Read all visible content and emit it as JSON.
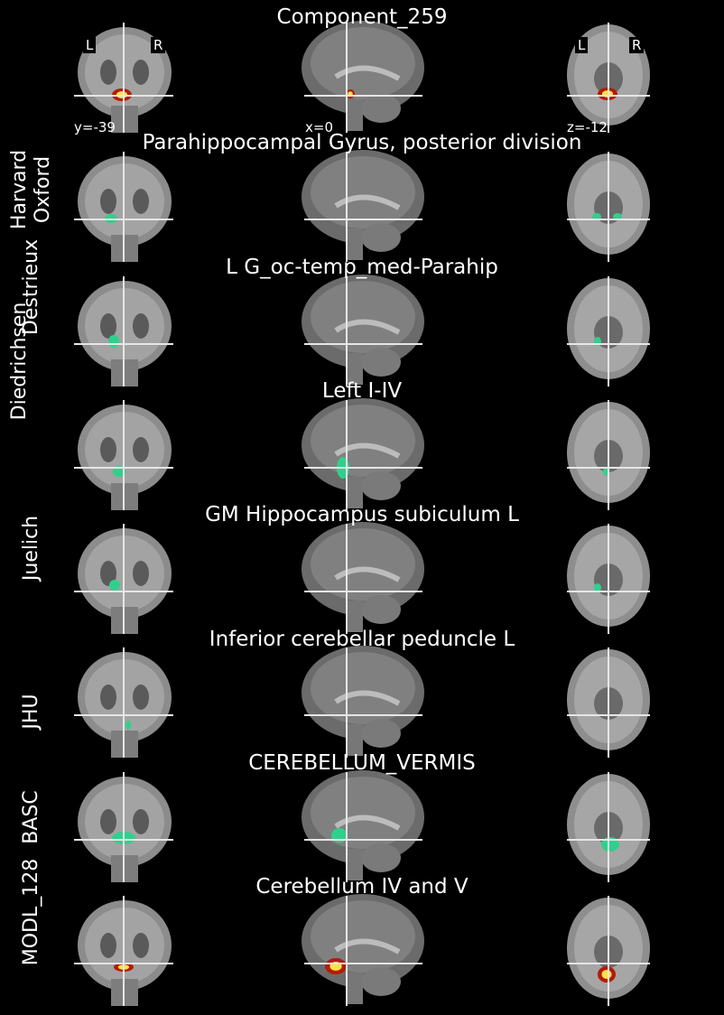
{
  "figure_title": "Component_259",
  "orientation": {
    "left": "L",
    "right": "R"
  },
  "coords": {
    "coronal": "y=-39",
    "sagittal": "x=0",
    "axial": "z=-12"
  },
  "rows": [
    {
      "atlas": "Harvard\nOxford",
      "region": "Parahippocampal Gyrus, posterior division"
    },
    {
      "atlas": "Destrieux",
      "region": "L G_oc-temp_med-Parahip"
    },
    {
      "atlas": "Diedrichsen",
      "region": "Left I-IV"
    },
    {
      "atlas": "Juelich",
      "region": "GM Hippocampus subiculum L"
    },
    {
      "atlas": "JHU",
      "region": "Inferior cerebellar peduncle L"
    },
    {
      "atlas": "BASC",
      "region": "CEREBELLUM_VERMIS"
    },
    {
      "atlas": "MODL_128",
      "region": "Cerebellum IV and V"
    }
  ],
  "colors": {
    "overlay_atlas": "#2fd08c",
    "overlay_hot_outer": "#b31c00",
    "overlay_hot_inner": "#ffe14a",
    "crosshair": "#e6e6e6"
  }
}
